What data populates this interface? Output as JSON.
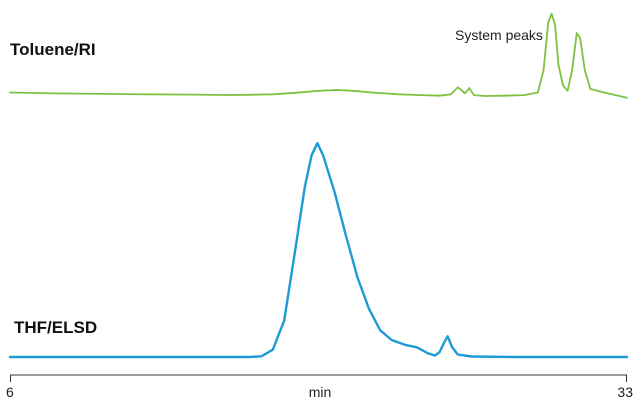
{
  "chart_data": {
    "type": "line",
    "xlabel": "min",
    "xlim": [
      6,
      33
    ],
    "x_tick_labels": [
      "6",
      "33"
    ],
    "grid": false,
    "annotations": [
      "System peaks"
    ],
    "series": [
      {
        "name": "Toluene/RI",
        "color": "#7dc243",
        "points": [
          [
            6.0,
            0.2
          ],
          [
            8.0,
            0.15
          ],
          [
            10.0,
            0.12
          ],
          [
            12.0,
            0.1
          ],
          [
            14.0,
            0.08
          ],
          [
            15.5,
            0.06
          ],
          [
            16.5,
            0.07
          ],
          [
            17.5,
            0.1
          ],
          [
            18.5,
            0.18
          ],
          [
            19.5,
            0.3
          ],
          [
            20.3,
            0.34
          ],
          [
            21.0,
            0.3
          ],
          [
            22.0,
            0.18
          ],
          [
            23.0,
            0.1
          ],
          [
            24.0,
            0.05
          ],
          [
            24.8,
            0.02
          ],
          [
            25.3,
            0.1
          ],
          [
            25.6,
            0.5
          ],
          [
            25.75,
            0.35
          ],
          [
            25.9,
            0.15
          ],
          [
            26.1,
            0.45
          ],
          [
            26.3,
            0.05
          ],
          [
            26.8,
            0.0
          ],
          [
            27.6,
            0.02
          ],
          [
            28.5,
            0.05
          ],
          [
            29.1,
            0.2
          ],
          [
            29.35,
            1.5
          ],
          [
            29.55,
            4.2
          ],
          [
            29.7,
            4.7
          ],
          [
            29.85,
            4.1
          ],
          [
            30.0,
            1.8
          ],
          [
            30.2,
            0.6
          ],
          [
            30.4,
            0.3
          ],
          [
            30.6,
            1.5
          ],
          [
            30.8,
            3.6
          ],
          [
            30.95,
            3.3
          ],
          [
            31.15,
            1.5
          ],
          [
            31.4,
            0.4
          ],
          [
            32.0,
            0.2
          ],
          [
            33.0,
            -0.1
          ]
        ]
      },
      {
        "name": "THF/ELSD",
        "color": "#1e9bd7",
        "points": [
          [
            6.0,
            0.0
          ],
          [
            16.5,
            0.0
          ],
          [
            17.0,
            0.03
          ],
          [
            17.5,
            0.3
          ],
          [
            18.0,
            1.5
          ],
          [
            18.5,
            4.5
          ],
          [
            18.9,
            7.0
          ],
          [
            19.2,
            8.3
          ],
          [
            19.45,
            8.8
          ],
          [
            19.7,
            8.3
          ],
          [
            20.2,
            6.8
          ],
          [
            20.7,
            5.0
          ],
          [
            21.2,
            3.3
          ],
          [
            21.7,
            2.0
          ],
          [
            22.2,
            1.1
          ],
          [
            22.7,
            0.7
          ],
          [
            23.3,
            0.5
          ],
          [
            23.8,
            0.4
          ],
          [
            24.3,
            0.15
          ],
          [
            24.6,
            0.06
          ],
          [
            24.8,
            0.2
          ],
          [
            25.0,
            0.6
          ],
          [
            25.15,
            0.85
          ],
          [
            25.35,
            0.4
          ],
          [
            25.6,
            0.1
          ],
          [
            26.2,
            0.02
          ],
          [
            28.0,
            0.0
          ],
          [
            33.0,
            0.0
          ]
        ]
      }
    ]
  }
}
